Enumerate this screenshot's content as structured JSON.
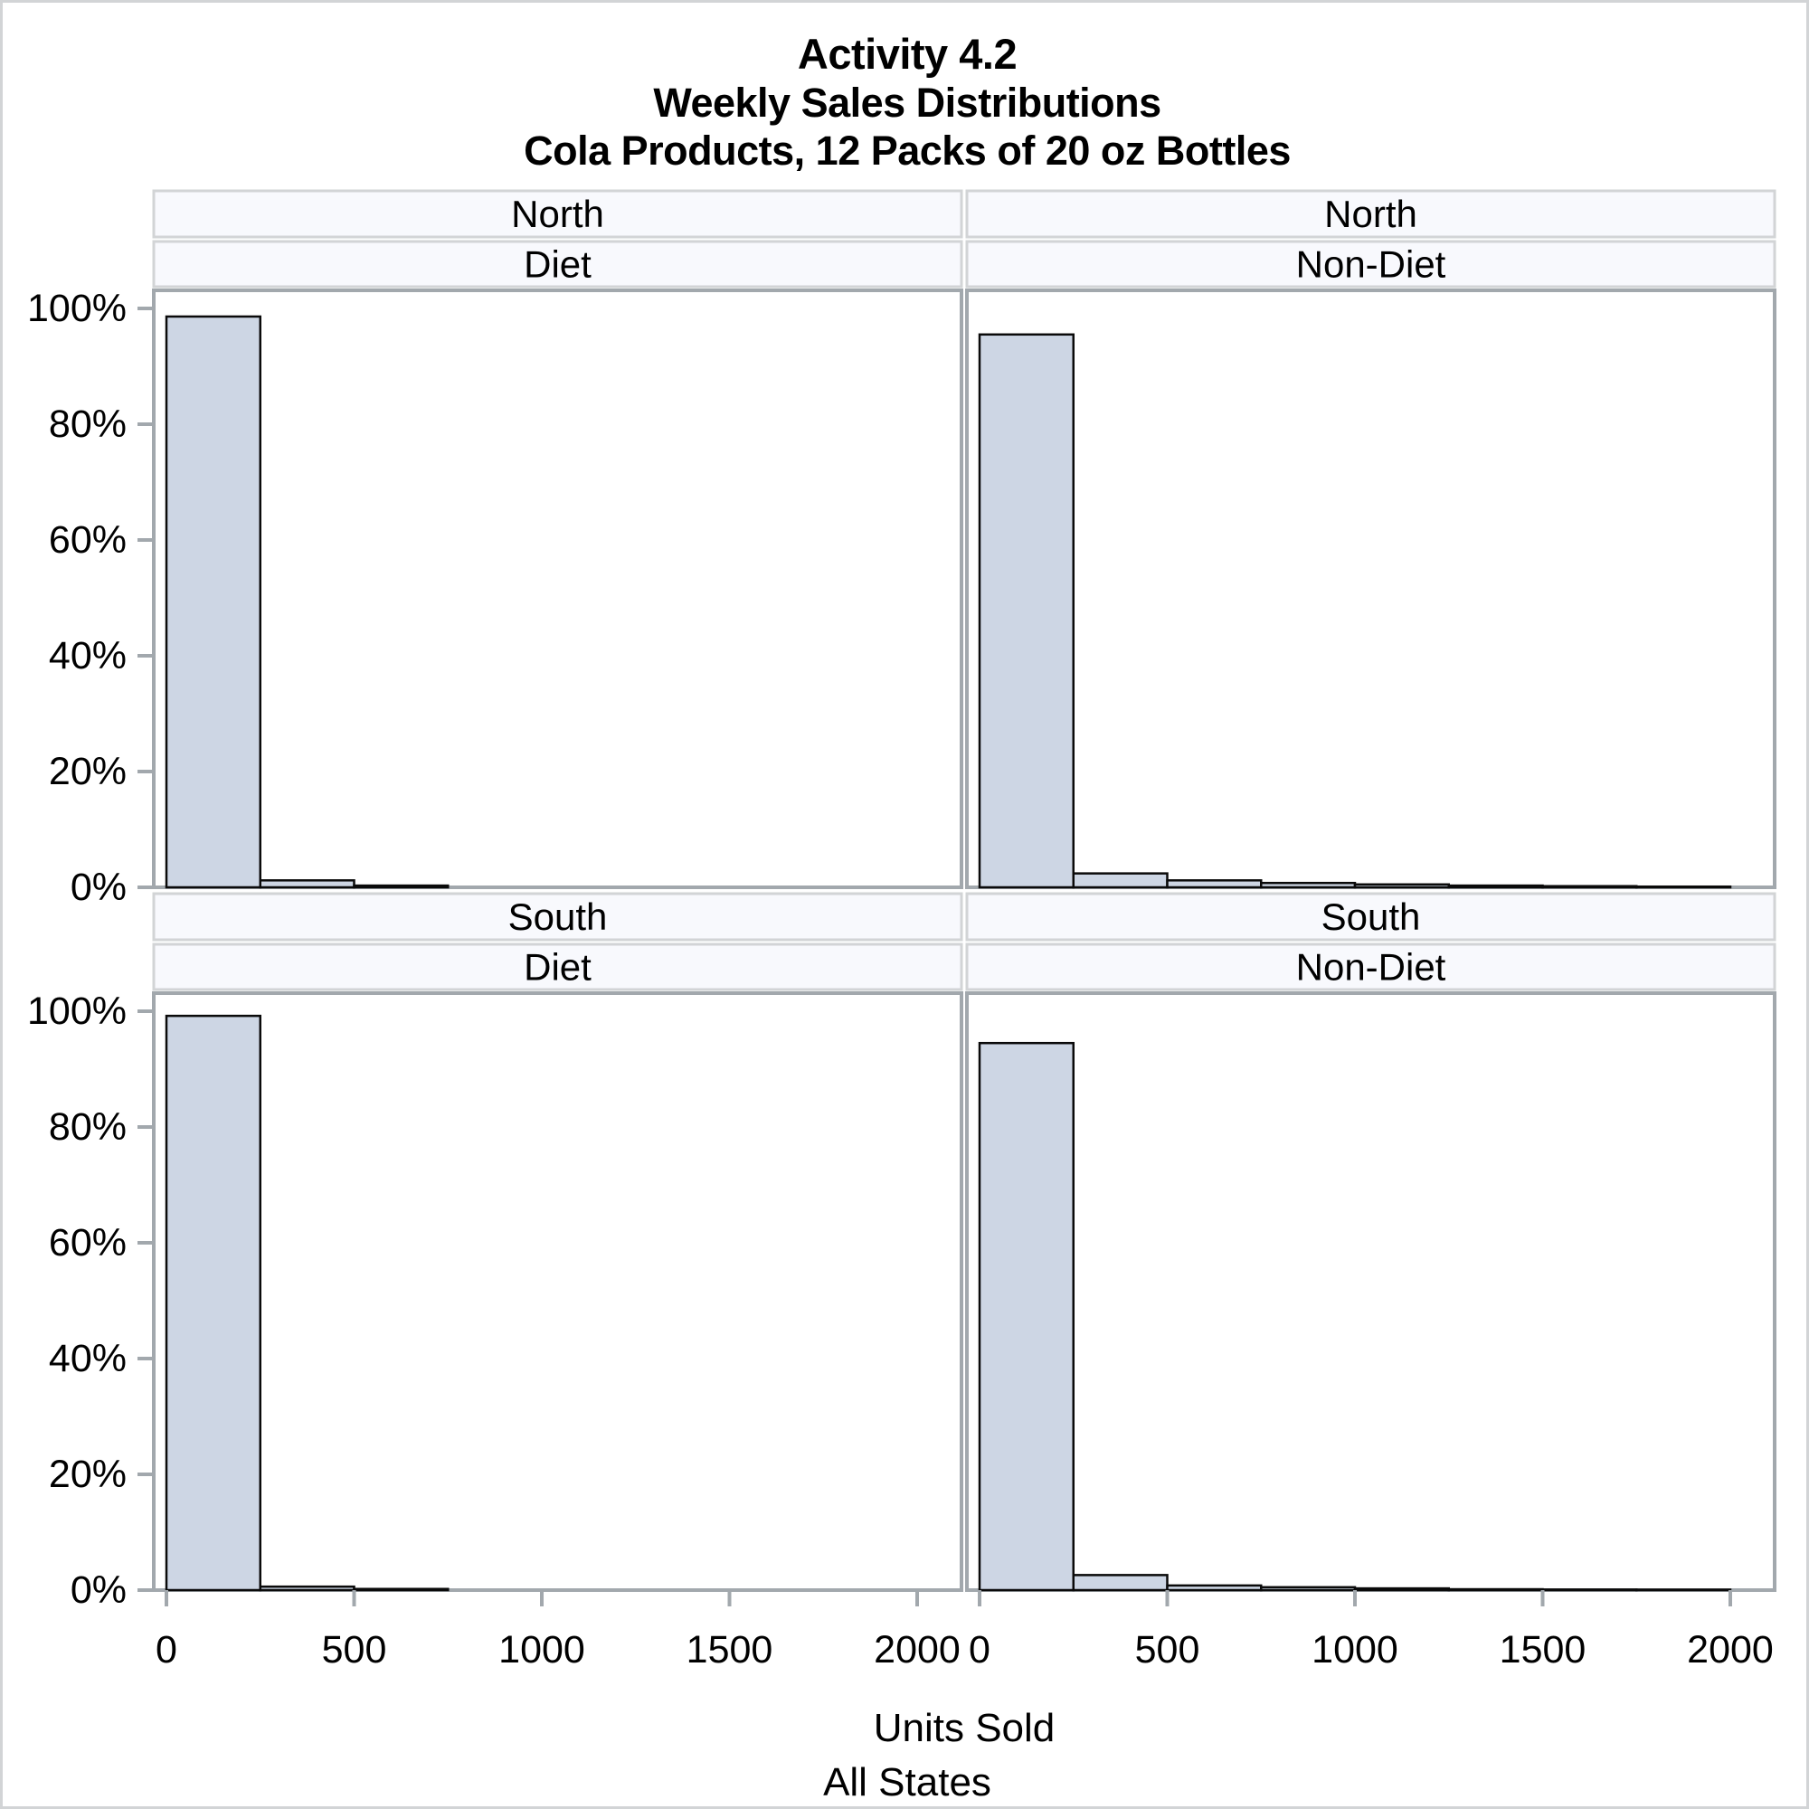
{
  "title": {
    "line1": "Activity 4.2",
    "line2": "Weekly Sales Distributions",
    "line3": "Cola Products, 12 Packs of 20 oz Bottles"
  },
  "chart_data": {
    "type": "bar",
    "subtype": "histogram-lattice-2x2",
    "xlabel": "Units Sold",
    "footnote": "All States",
    "bin_width": 250,
    "bin_start": 0,
    "bin_edges": [
      0,
      250,
      500,
      750,
      1000,
      1250,
      1500,
      1750,
      2000
    ],
    "x_ticks": [
      0,
      500,
      1000,
      1500,
      2000
    ],
    "x_tick_labels": [
      "0",
      "500",
      "1000",
      "1500",
      "2000"
    ],
    "y_ticks_pct": [
      0,
      20,
      40,
      60,
      80,
      100
    ],
    "y_tick_labels": [
      "0%",
      "20%",
      "40%",
      "60%",
      "80%",
      "100%"
    ],
    "xlim": [
      0,
      2100
    ],
    "ylim": [
      0,
      103
    ],
    "grid": false,
    "legend": "none",
    "panels": [
      {
        "row_label": "North",
        "col_label": "Diet",
        "values_pct": [
          98.6,
          1.2,
          0.3,
          0,
          0,
          0,
          0,
          0
        ]
      },
      {
        "row_label": "North",
        "col_label": "Non-Diet",
        "values_pct": [
          95.5,
          2.4,
          1.2,
          0.75,
          0.5,
          0.3,
          0.2,
          0.12
        ]
      },
      {
        "row_label": "South",
        "col_label": "Diet",
        "values_pct": [
          99.2,
          0.6,
          0.2,
          0,
          0,
          0,
          0,
          0
        ]
      },
      {
        "row_label": "South",
        "col_label": "Non-Diet",
        "values_pct": [
          94.5,
          2.6,
          0.8,
          0.5,
          0.3,
          0.15,
          0.1,
          0.08
        ]
      }
    ],
    "colors": {
      "bar_fill": "#cdd6e4",
      "bar_stroke": "#0a0a0a",
      "frame": "#a2a8ad",
      "strip_bg": "#f8f9fd",
      "strip_border": "#d2d4d6",
      "text": "#000000"
    }
  }
}
